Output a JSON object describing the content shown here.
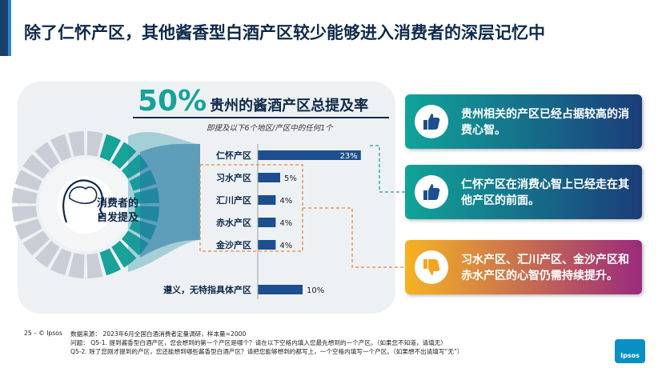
{
  "title": "除了仁怀产区，其他酱香型白酒产区较少能够进入消费者的深层记忆中",
  "headline": {
    "percent": "50%",
    "label": "贵州的酱酒产区总提及率"
  },
  "subtitle": "即提及以下6个地区/产区中的任何1个",
  "center_label": [
    "消费者的",
    "自发提及"
  ],
  "colors": {
    "bar": "#1d4f8f",
    "accent": "#17a29a",
    "dash": "#e38a3a",
    "navy": "#0e2a4a"
  },
  "chart_data": {
    "type": "bar",
    "orientation": "horizontal",
    "categories": [
      "仁怀产区",
      "习水产区",
      "汇川产区",
      "赤水产区",
      "金沙产区",
      "遵义，无特指具体产区"
    ],
    "values": [
      23,
      5,
      4,
      4,
      4,
      10
    ],
    "value_labels": [
      "23%",
      "5%",
      "4%",
      "4%",
      "4%",
      "10%"
    ],
    "xlim": [
      0,
      25
    ],
    "title": "贵州的酱酒产区总提及率",
    "subtitle": "即提及以下6个地区/产区中的任何1个",
    "xlabel": "",
    "ylabel": "",
    "grid": false,
    "legend": "none"
  },
  "cards": [
    {
      "text": "贵州相关的产区已经占据较高的消费心智。",
      "icon": "thumbs-up-icon"
    },
    {
      "text": "仁怀产区在消费心智上已经走在其他产区的前面。",
      "icon": "thumbs-up-icon"
    },
    {
      "text": "习水产区、汇川产区、金沙产区和赤水产区的心智仍需持续提升。",
      "icon": "thumbs-down-icon"
    }
  ],
  "footer": {
    "page": "25 –  © Ipsos",
    "lines": [
      "数据来源： 2023年6月全国白酒消费者定量调研，样本量=2000",
      "问题： Q5-1. 提到酱香型白酒产区，您会想到的第一个产区是哪个？请在以下空格内填入您最先想到的一个产区。（如果您不知道，请填无）",
      "Q5-2. 除了您刚才提到的产区，您还能想到哪些酱香型白酒产区？请把您能够想到的都写上，一个空格内填写一个产区。（如果想不出请填写“无”）"
    ]
  },
  "logo": "Ipsos"
}
